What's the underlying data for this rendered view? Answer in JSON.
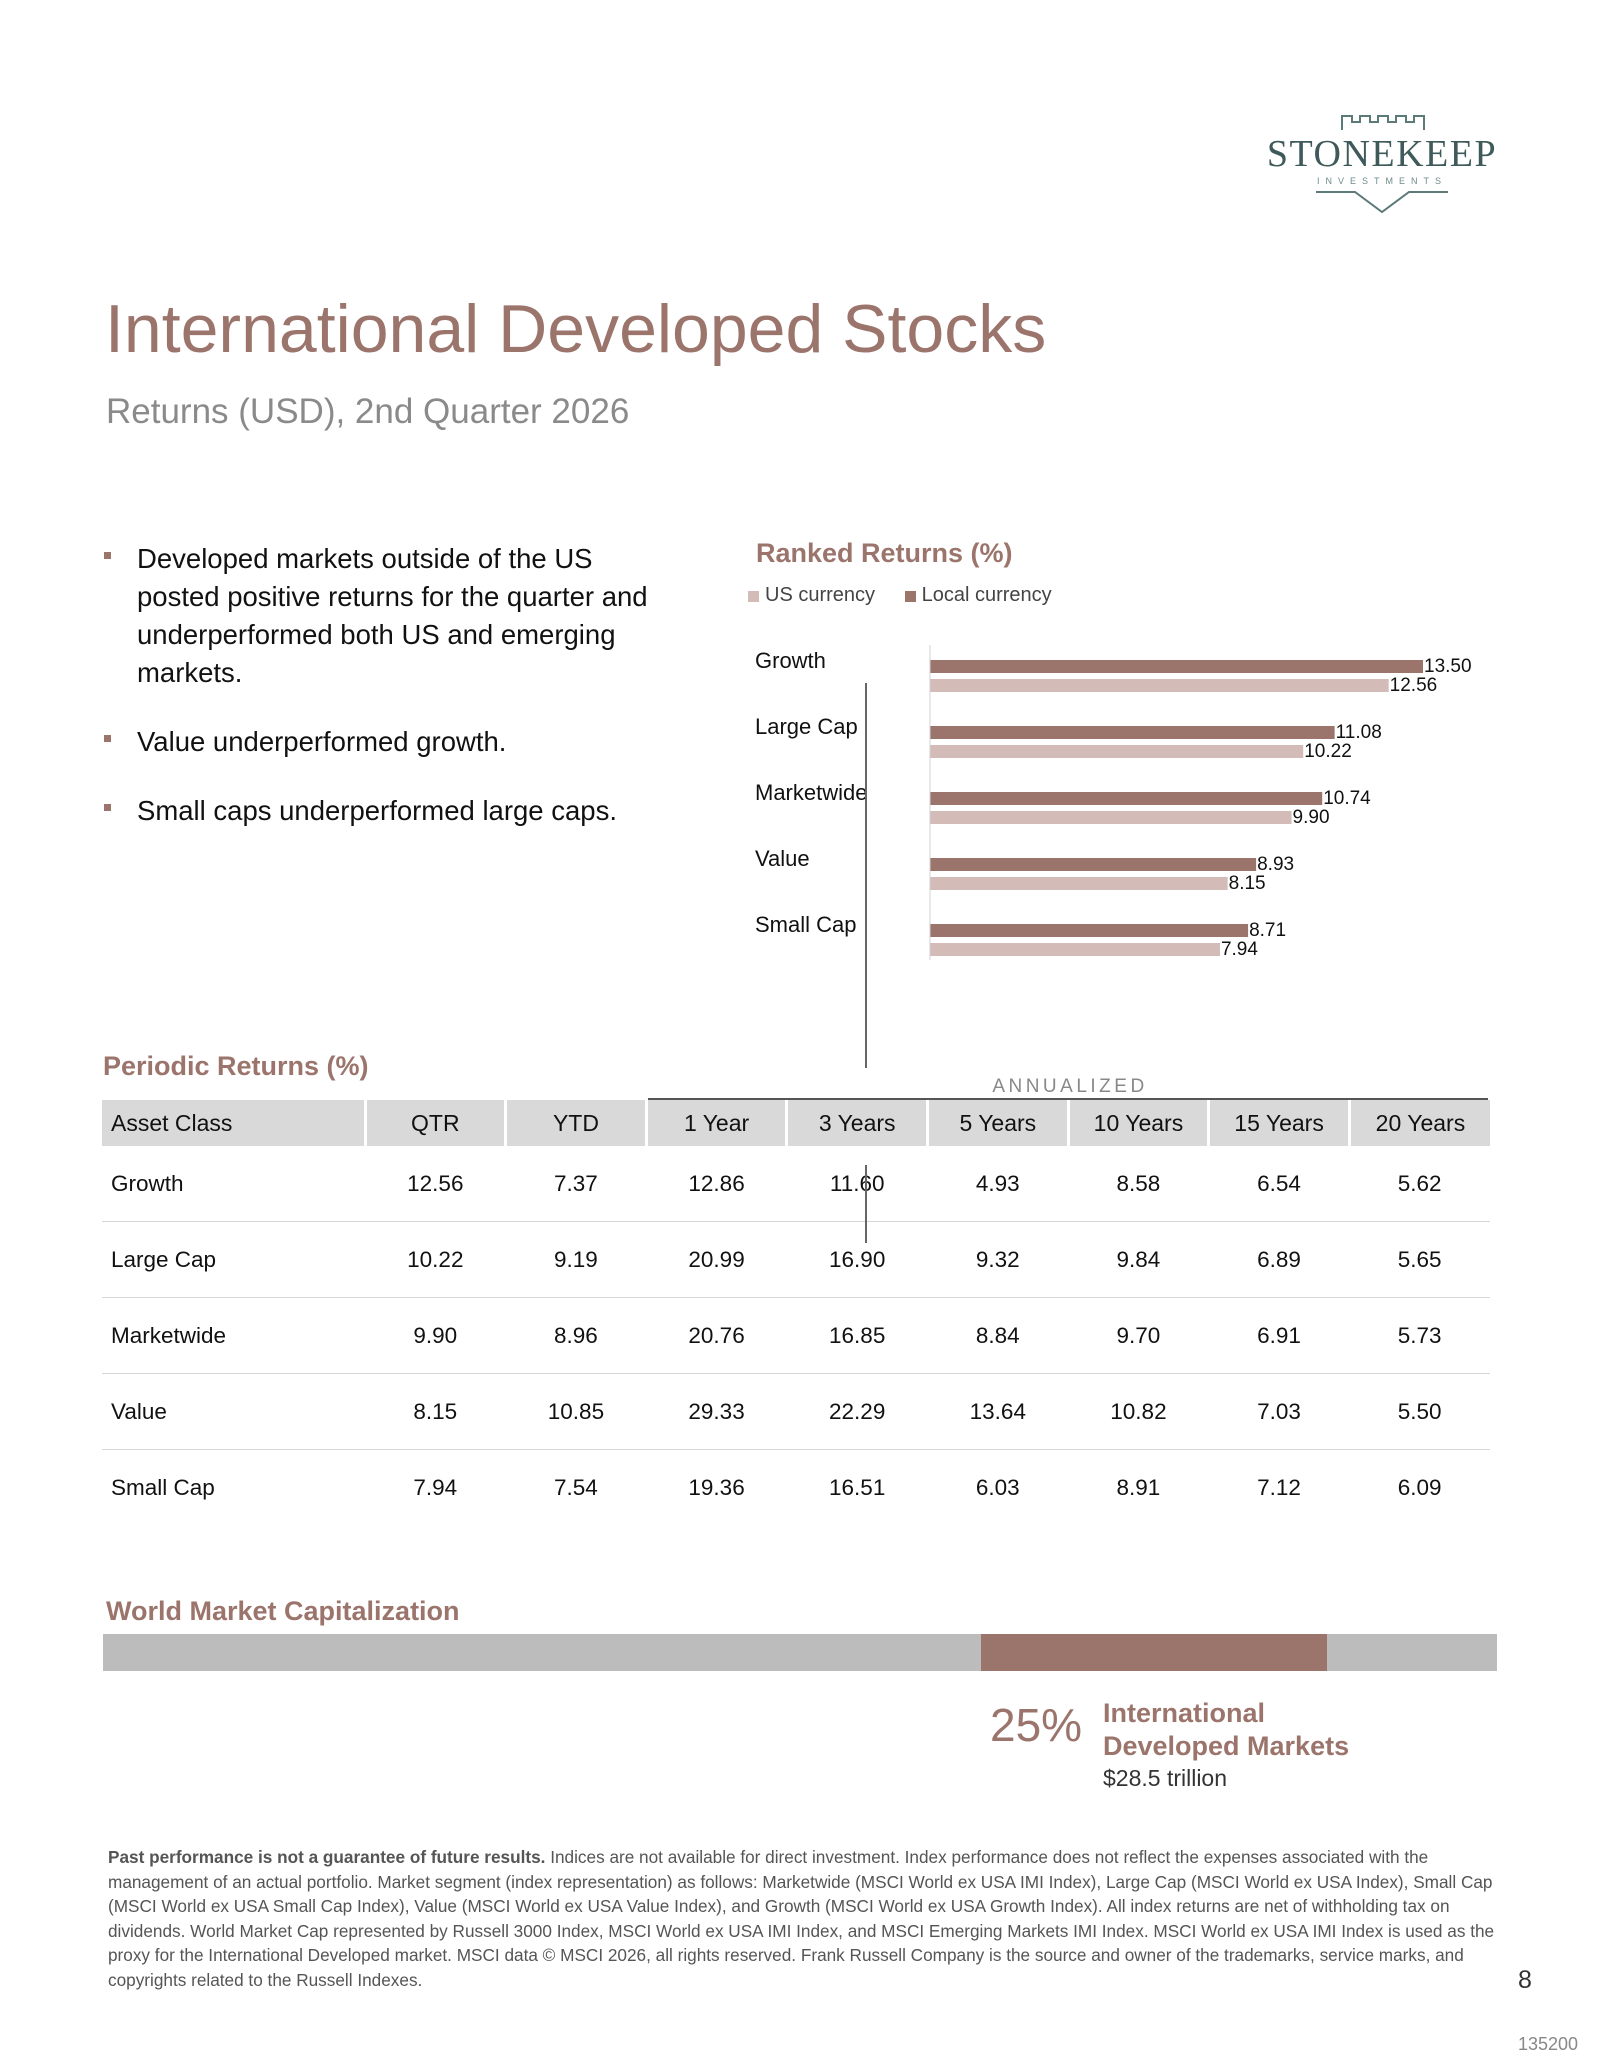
{
  "logo": {
    "name": "STONEKEEP",
    "tagline": "INVESTMENTS"
  },
  "header": {
    "title": "International Developed Stocks",
    "subtitle": "Returns (USD), 2nd Quarter 2026"
  },
  "bullets": [
    "Developed markets outside of the US posted positive returns for the quarter and underperformed both US and emerging markets.",
    "Value underperformed growth.",
    "Small caps underperformed large caps."
  ],
  "chart_data": {
    "type": "bar",
    "orientation": "horizontal",
    "title": "Ranked Returns (%)",
    "categories": [
      "Growth",
      "Large Cap",
      "Marketwide",
      "Value",
      "Small Cap"
    ],
    "series": [
      {
        "name": "Local currency",
        "color": "#9b746c",
        "values": [
          13.5,
          11.08,
          10.74,
          8.93,
          8.71
        ],
        "labels": [
          "13.50",
          "11.08",
          "10.74",
          "8.93",
          "8.71"
        ]
      },
      {
        "name": "US currency",
        "color": "#d3bcb8",
        "values": [
          12.56,
          10.22,
          9.9,
          8.15,
          7.94
        ],
        "labels": [
          "12.56",
          "10.22",
          "9.90",
          "8.15",
          "7.94"
        ]
      }
    ],
    "legend_order": [
      "US currency",
      "Local currency"
    ],
    "xlim": [
      0,
      15
    ],
    "grid": false,
    "legend": "top"
  },
  "periodic_returns": {
    "title": "Periodic Returns (%)",
    "annualized_label": "ANNUALIZED",
    "headers": [
      "Asset Class",
      "QTR",
      "YTD",
      "1 Year",
      "3 Years",
      "5 Years",
      "10 Years",
      "15 Years",
      "20 Years"
    ],
    "rows": [
      [
        "Growth",
        "12.56",
        "7.37",
        "12.86",
        "11.60",
        "4.93",
        "8.58",
        "6.54",
        "5.62"
      ],
      [
        "Large Cap",
        "10.22",
        "9.19",
        "20.99",
        "16.90",
        "9.32",
        "9.84",
        "6.89",
        "5.65"
      ],
      [
        "Marketwide",
        "9.90",
        "8.96",
        "20.76",
        "16.85",
        "8.84",
        "9.70",
        "6.91",
        "5.73"
      ],
      [
        "Value",
        "8.15",
        "10.85",
        "29.33",
        "22.29",
        "13.64",
        "10.82",
        "7.03",
        "5.50"
      ],
      [
        "Small Cap",
        "7.94",
        "7.54",
        "19.36",
        "16.51",
        "6.03",
        "8.91",
        "7.12",
        "6.09"
      ]
    ]
  },
  "world_market_cap": {
    "title": "World Market Capitalization",
    "percent_label": "25%",
    "label": "International Developed Markets",
    "value": "$28.5 trillion",
    "segment_start": 0.63,
    "segment_share": 0.25,
    "fill_color": "#9b746c",
    "track_color": "#bcbcbc"
  },
  "footnote": {
    "bold": "Past performance is not a guarantee of future results.",
    "text": " Indices are not available for direct investment. Index performance does not reflect the expenses associated with the management of an actual portfolio. Market segment (index representation) as follows: Marketwide (MSCI World ex USA IMI Index), Large Cap (MSCI World ex USA Index), Small Cap (MSCI World ex USA Small Cap Index), Value (MSCI World ex USA Value Index), and Growth (MSCI World ex USA Growth Index). All index returns are net of withholding tax on dividends. World Market Cap represented by Russell 3000 Index, MSCI World ex USA IMI Index, and MSCI Emerging Markets IMI Index. MSCI World ex USA IMI Index is used as the proxy for the International Developed market. MSCI data © MSCI 2026, all rights reserved. Frank Russell Company is the source and owner of the trademarks, service marks, and copyrights related to the Russell Indexes."
  },
  "page_number": "8",
  "doc_id": "135200"
}
